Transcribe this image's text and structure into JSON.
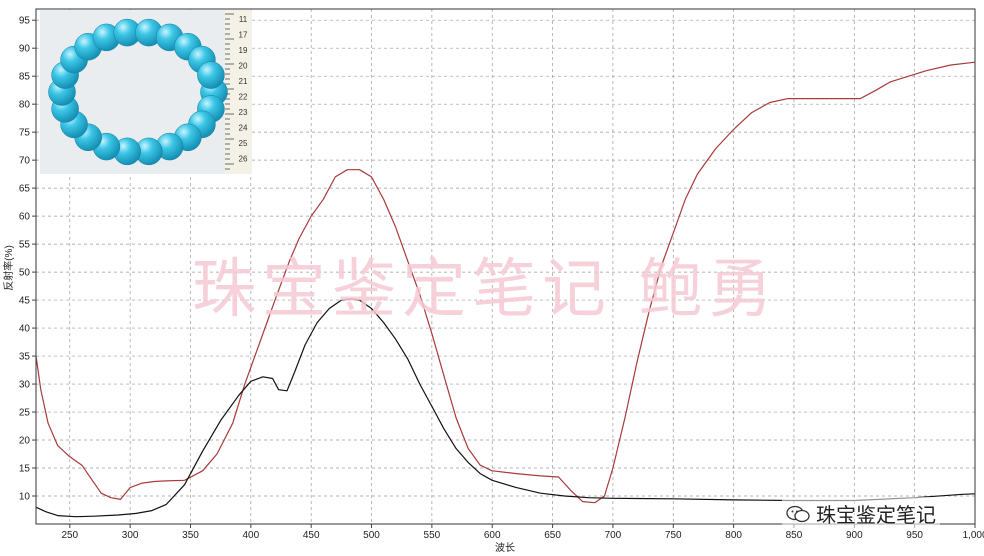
{
  "chart_data": {
    "type": "line",
    "title": "",
    "xlabel": "波长",
    "ylabel": "反射率(%)",
    "xlim": [
      222,
      1000
    ],
    "ylim": [
      5,
      97
    ],
    "x_ticks": [
      "250",
      "300",
      "350",
      "400",
      "450",
      "500",
      "550",
      "600",
      "650",
      "700",
      "750",
      "800",
      "850",
      "900",
      "950",
      "1,000"
    ],
    "y_ticks": [
      "10",
      "15",
      "20",
      "25",
      "30",
      "35",
      "40",
      "45",
      "50",
      "55",
      "60",
      "65",
      "70",
      "75",
      "80",
      "85",
      "90",
      "95"
    ],
    "grid": true,
    "series": [
      {
        "color": "#a83a3a",
        "points": [
          [
            222,
            35
          ],
          [
            226,
            29
          ],
          [
            232,
            23
          ],
          [
            240,
            19
          ],
          [
            250,
            17
          ],
          [
            260,
            15.5
          ],
          [
            268,
            13
          ],
          [
            276,
            10.5
          ],
          [
            284,
            9.7
          ],
          [
            292,
            9.4
          ],
          [
            300,
            11.5
          ],
          [
            310,
            12.3
          ],
          [
            320,
            12.6
          ],
          [
            330,
            12.7
          ],
          [
            345,
            12.8
          ],
          [
            360,
            14.5
          ],
          [
            372,
            17.5
          ],
          [
            385,
            23
          ],
          [
            395,
            30
          ],
          [
            405,
            36
          ],
          [
            420,
            45
          ],
          [
            432,
            52
          ],
          [
            440,
            56
          ],
          [
            450,
            60
          ],
          [
            460,
            63
          ],
          [
            470,
            67
          ],
          [
            480,
            68.3
          ],
          [
            490,
            68.3
          ],
          [
            500,
            67
          ],
          [
            510,
            63
          ],
          [
            520,
            58
          ],
          [
            530,
            52
          ],
          [
            540,
            46
          ],
          [
            550,
            39
          ],
          [
            560,
            31.5
          ],
          [
            570,
            24
          ],
          [
            580,
            18.5
          ],
          [
            590,
            15.5
          ],
          [
            600,
            14.5
          ],
          [
            620,
            14
          ],
          [
            640,
            13.6
          ],
          [
            655,
            13.4
          ],
          [
            665,
            11
          ],
          [
            675,
            9
          ],
          [
            685,
            8.8
          ],
          [
            693,
            10
          ],
          [
            700,
            15
          ],
          [
            710,
            24
          ],
          [
            720,
            34
          ],
          [
            730,
            43
          ],
          [
            740,
            51
          ],
          [
            750,
            57
          ],
          [
            760,
            63
          ],
          [
            770,
            67.5
          ],
          [
            785,
            72
          ],
          [
            800,
            75.5
          ],
          [
            815,
            78.5
          ],
          [
            830,
            80.3
          ],
          [
            845,
            81
          ],
          [
            860,
            81
          ],
          [
            875,
            81
          ],
          [
            890,
            81
          ],
          [
            905,
            81
          ],
          [
            918,
            82.5
          ],
          [
            930,
            84
          ],
          [
            945,
            85
          ],
          [
            960,
            86
          ],
          [
            980,
            87
          ],
          [
            1000,
            87.5
          ]
        ]
      },
      {
        "color": "#111111",
        "points": [
          [
            222,
            8
          ],
          [
            230,
            7.2
          ],
          [
            240,
            6.5
          ],
          [
            255,
            6.3
          ],
          [
            270,
            6.4
          ],
          [
            290,
            6.6
          ],
          [
            305,
            6.9
          ],
          [
            318,
            7.4
          ],
          [
            330,
            8.5
          ],
          [
            345,
            12
          ],
          [
            360,
            18
          ],
          [
            375,
            23.5
          ],
          [
            390,
            28
          ],
          [
            400,
            30.5
          ],
          [
            410,
            31.3
          ],
          [
            418,
            31
          ],
          [
            423,
            29
          ],
          [
            430,
            28.8
          ],
          [
            436,
            32
          ],
          [
            445,
            37
          ],
          [
            455,
            41
          ],
          [
            465,
            43.5
          ],
          [
            475,
            45
          ],
          [
            483,
            45.2
          ],
          [
            490,
            45
          ],
          [
            500,
            43.5
          ],
          [
            510,
            41
          ],
          [
            520,
            38
          ],
          [
            530,
            34.5
          ],
          [
            540,
            30
          ],
          [
            550,
            26
          ],
          [
            560,
            22
          ],
          [
            570,
            18.5
          ],
          [
            580,
            16
          ],
          [
            590,
            14
          ],
          [
            600,
            12.8
          ],
          [
            620,
            11.5
          ],
          [
            640,
            10.5
          ],
          [
            660,
            10
          ],
          [
            680,
            9.7
          ],
          [
            700,
            9.6
          ],
          [
            750,
            9.5
          ],
          [
            800,
            9.3
          ],
          [
            850,
            9.2
          ],
          [
            900,
            9.2
          ],
          [
            950,
            9.7
          ],
          [
            990,
            10.3
          ],
          [
            1000,
            10.4
          ]
        ]
      }
    ]
  },
  "watermark": {
    "text": "珠宝鉴定笔记    鲍勇"
  },
  "brand": {
    "text": "珠宝鉴定笔记",
    "icon": "wechat-icon"
  },
  "photo": {
    "description_icon": "turquoise-bracelet-photo",
    "ruler_ticks": [
      "11",
      "17",
      "19",
      "20",
      "21",
      "22",
      "23",
      "24",
      "25",
      "26"
    ]
  }
}
